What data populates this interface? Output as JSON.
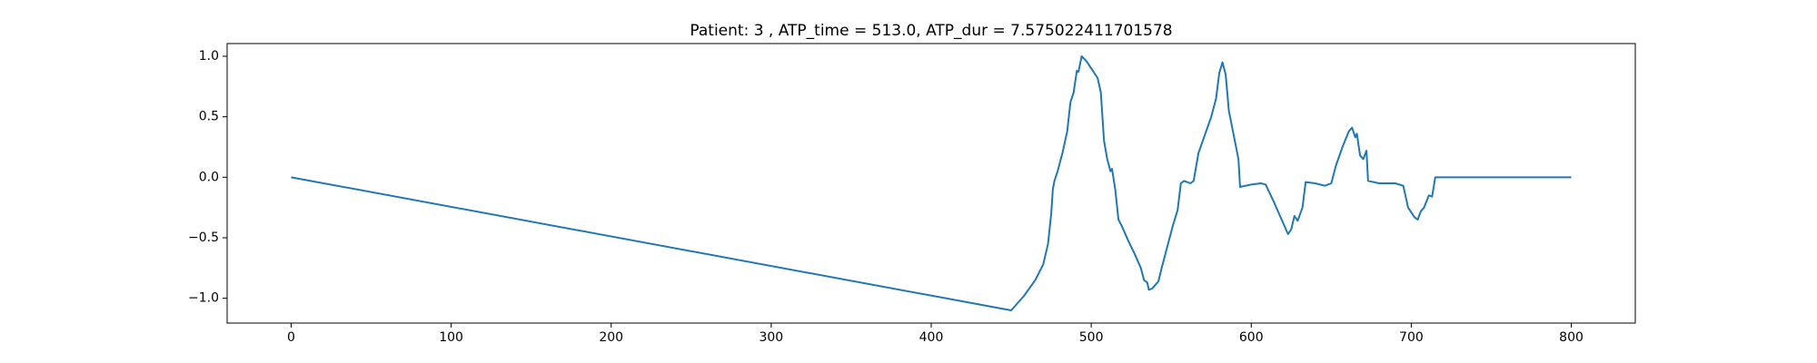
{
  "chart_data": {
    "type": "line",
    "title": "Patient: 3 , ATP_time = 513.0, ATP_dur = 7.575022411701578",
    "x": [
      0,
      450,
      458,
      465,
      470,
      473,
      475,
      476,
      477,
      479,
      482,
      485,
      487,
      489,
      491,
      492,
      494,
      497,
      500,
      504,
      506,
      508,
      510,
      512,
      513,
      515,
      517,
      519,
      523,
      527,
      531,
      533,
      535,
      536,
      538,
      542,
      544,
      547,
      551,
      554,
      556,
      558,
      562,
      564,
      567,
      571,
      575,
      578,
      580,
      582,
      584,
      586,
      589,
      592,
      593,
      600,
      606,
      609,
      614,
      620,
      623,
      625,
      627,
      629,
      632,
      634,
      640,
      646,
      650,
      653,
      657,
      661,
      663,
      665,
      666,
      668,
      670,
      672,
      673,
      680,
      690,
      695,
      698,
      702,
      704,
      706,
      708,
      711,
      713,
      715,
      800
    ],
    "values": [
      0,
      -1.1,
      -0.98,
      -0.85,
      -0.72,
      -0.55,
      -0.3,
      -0.1,
      -0.03,
      0.05,
      0.2,
      0.38,
      0.62,
      0.7,
      0.88,
      0.87,
      1.0,
      0.96,
      0.9,
      0.82,
      0.7,
      0.3,
      0.15,
      0.05,
      0.07,
      -0.1,
      -0.35,
      -0.4,
      -0.52,
      -0.63,
      -0.75,
      -0.85,
      -0.87,
      -0.93,
      -0.92,
      -0.86,
      -0.75,
      -0.6,
      -0.4,
      -0.27,
      -0.05,
      -0.03,
      -0.05,
      -0.03,
      0.2,
      0.35,
      0.5,
      0.65,
      0.86,
      0.95,
      0.85,
      0.55,
      0.35,
      0.15,
      -0.08,
      -0.06,
      -0.05,
      -0.06,
      -0.2,
      -0.38,
      -0.47,
      -0.43,
      -0.32,
      -0.36,
      -0.25,
      -0.04,
      -0.05,
      -0.07,
      -0.05,
      0.1,
      0.25,
      0.38,
      0.41,
      0.33,
      0.36,
      0.18,
      0.15,
      0.22,
      -0.03,
      -0.05,
      -0.05,
      -0.07,
      -0.25,
      -0.33,
      -0.35,
      -0.28,
      -0.25,
      -0.15,
      -0.16,
      0,
      0
    ],
    "color": "#1f77b4",
    "xlim": [
      -40,
      840
    ],
    "xticks": [
      0,
      100,
      200,
      300,
      400,
      500,
      600,
      700,
      800
    ],
    "ylim": [
      -1.205,
      1.105
    ],
    "yticks": [
      {
        "value": -1.0,
        "label": "−1.0"
      },
      {
        "value": -0.5,
        "label": "−0.5"
      },
      {
        "value": 0.0,
        "label": "0.0"
      },
      {
        "value": 0.5,
        "label": "0.5"
      },
      {
        "value": 1.0,
        "label": "1.0"
      }
    ]
  }
}
